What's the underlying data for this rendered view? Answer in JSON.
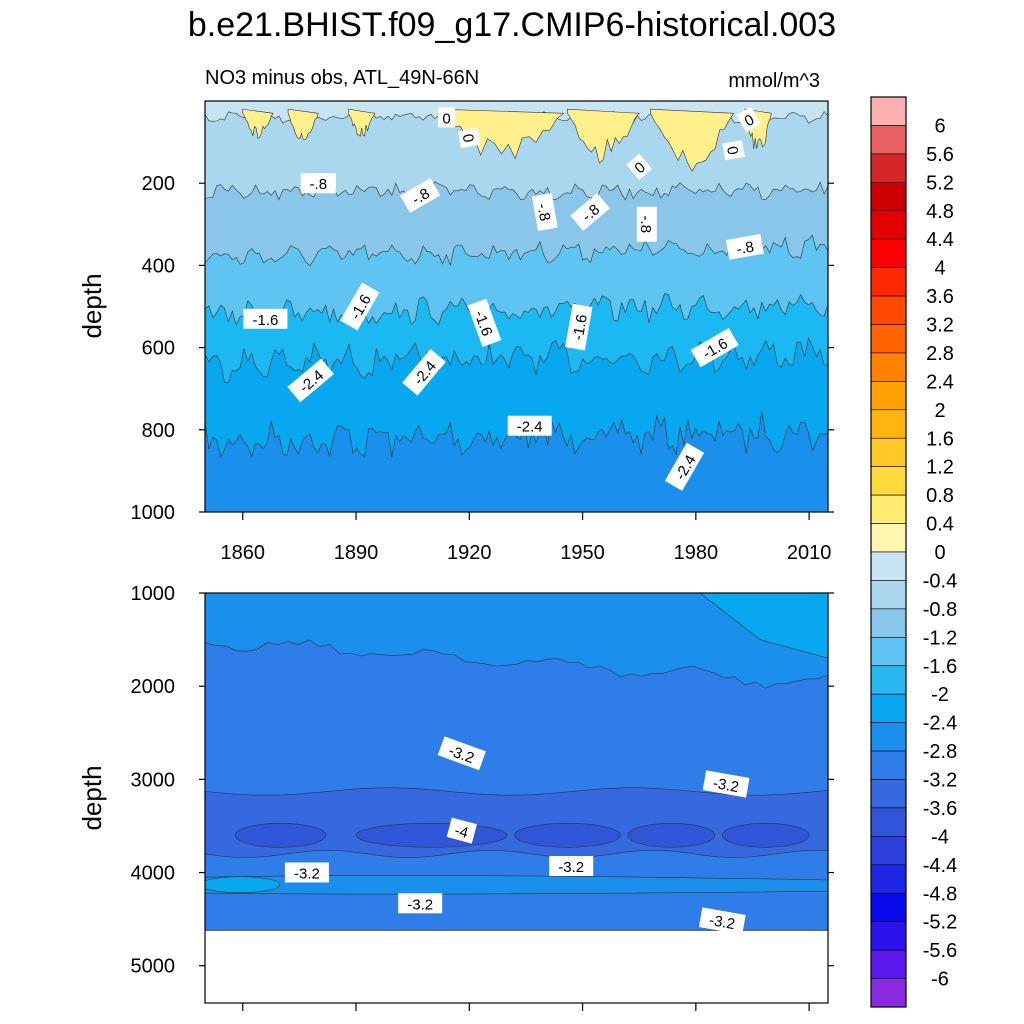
{
  "title": "b.e21.BHIST.f09_g17.CMIP6-historical.003",
  "colors": {
    "levels": [
      [
        "#8a2be2",
        "#6a2fe6",
        "#4b1ee8",
        "#2416f0",
        "#0a0aef",
        "#1c32e0",
        "#2f55d8",
        "#3669e0",
        "#2f7de8",
        "#1a90ec",
        "#08a8f0",
        "#1cb8f2",
        "#5fc4f2",
        "#8ac6ea",
        "#aad6ee",
        "#c6e4f2"
      ],
      [
        "#fff6b0",
        "#fff08c",
        "#ffe870",
        "#ffdc40",
        "#ffcc2a",
        "#ffbb20",
        "#ffaa10",
        "#ff9500",
        "#ff7a00",
        "#ff6200",
        "#ff4a00",
        "#ff3000",
        "#ff1a00",
        "#ee0000",
        "#d50000",
        "#c80000",
        "#d22020",
        "#e85a5a",
        "#ffb0b0"
      ]
    ],
    "panel_top_bands": [
      "#c6e4f2",
      "#aad6ee",
      "#8ac6ea",
      "#5fc4f2",
      "#1cb8f2",
      "#08a8f0",
      "#1a90ec"
    ],
    "panel_bottom_bands": [
      "#1a90ec",
      "#2f7de8",
      "#3669e0",
      "#2f55d8"
    ],
    "positive_band": "#fff08c",
    "positive_band_strong": "#ffe870"
  },
  "chart_data": [
    {
      "type": "contour",
      "panel": "top",
      "left_title": "NO3 minus obs, ATL_49N-66N",
      "right_title": "mmol/m^3",
      "ylabel": "depth",
      "ylim": [
        1000,
        0
      ],
      "yticks": [
        "200",
        "400",
        "600",
        "800",
        "1000"
      ],
      "xlim": [
        1850,
        2015
      ],
      "xticks": [
        "1860",
        "1890",
        "1920",
        "1950",
        "1980",
        "2010"
      ],
      "contour_labels": [
        {
          "text": "0",
          "year": 1914,
          "depth": 40
        },
        {
          "text": "0",
          "year": 1920,
          "depth": 90
        },
        {
          "text": "0",
          "year": 1994,
          "depth": 45
        },
        {
          "text": "0",
          "year": 1990,
          "depth": 120
        },
        {
          "text": "0",
          "year": 1965,
          "depth": 160
        },
        {
          "text": "-.8",
          "year": 1880,
          "depth": 200
        },
        {
          "text": "-.8",
          "year": 1907,
          "depth": 230
        },
        {
          "text": "-.8",
          "year": 1940,
          "depth": 270
        },
        {
          "text": "-.8",
          "year": 1952,
          "depth": 270
        },
        {
          "text": "-.8",
          "year": 1967,
          "depth": 300
        },
        {
          "text": "-.8",
          "year": 1993,
          "depth": 355
        },
        {
          "text": "-1.6",
          "year": 1866,
          "depth": 530
        },
        {
          "text": "-1.6",
          "year": 1891,
          "depth": 500
        },
        {
          "text": "-1.6",
          "year": 1924,
          "depth": 540
        },
        {
          "text": "-1.6",
          "year": 1949,
          "depth": 550
        },
        {
          "text": "-1.6",
          "year": 1985,
          "depth": 600
        },
        {
          "text": "-2.4",
          "year": 1878,
          "depth": 680
        },
        {
          "text": "-2.4",
          "year": 1908,
          "depth": 660
        },
        {
          "text": "-2.4",
          "year": 1936,
          "depth": 790
        },
        {
          "text": "-2.4",
          "year": 1977,
          "depth": 890
        }
      ]
    },
    {
      "type": "contour",
      "panel": "bottom",
      "ylabel": "depth",
      "ylim": [
        5400,
        1000
      ],
      "yticks": [
        "1000",
        "2000",
        "3000",
        "4000",
        "5000"
      ],
      "xlim": [
        1850,
        2015
      ],
      "contour_labels": [
        {
          "text": "-3.2",
          "year": 1918,
          "depth": 2720
        },
        {
          "text": "-3.2",
          "year": 1988,
          "depth": 3050
        },
        {
          "text": "-4",
          "year": 1918,
          "depth": 3550
        },
        {
          "text": "-3.2",
          "year": 1877,
          "depth": 4000
        },
        {
          "text": "-3.2",
          "year": 1947,
          "depth": 3930
        },
        {
          "text": "-3.2",
          "year": 1907,
          "depth": 4330
        },
        {
          "text": "-3.2",
          "year": 1987,
          "depth": 4520
        }
      ]
    }
  ],
  "colorbar": {
    "labels": [
      "6",
      "5.6",
      "5.2",
      "4.8",
      "4.4",
      "4",
      "3.6",
      "3.2",
      "2.8",
      "2.4",
      "2",
      "1.6",
      "1.2",
      "0.8",
      "0.4",
      "0",
      "-0.4",
      "-0.8",
      "-1.2",
      "-1.6",
      "-2",
      "-2.4",
      "-2.8",
      "-3.2",
      "-3.6",
      "-4",
      "-4.4",
      "-4.8",
      "-5.2",
      "-5.6",
      "-6"
    ],
    "colors_top_to_bottom": [
      "#ffb0b0",
      "#e86060",
      "#d22828",
      "#cc0000",
      "#e40000",
      "#ff0000",
      "#ff2800",
      "#ff4800",
      "#ff6400",
      "#ff8200",
      "#ffa000",
      "#ffb410",
      "#ffc828",
      "#ffdc3c",
      "#ffec70",
      "#fff7b0",
      "#c6e4f2",
      "#aad6ee",
      "#8ac6ea",
      "#5fc4f2",
      "#2ab8f2",
      "#08a8f0",
      "#1a90ec",
      "#2f7de8",
      "#3669e0",
      "#2f55d8",
      "#2a40d8",
      "#1e28e4",
      "#0a0aef",
      "#2a12ee",
      "#5a18ec",
      "#8a2be2"
    ]
  }
}
